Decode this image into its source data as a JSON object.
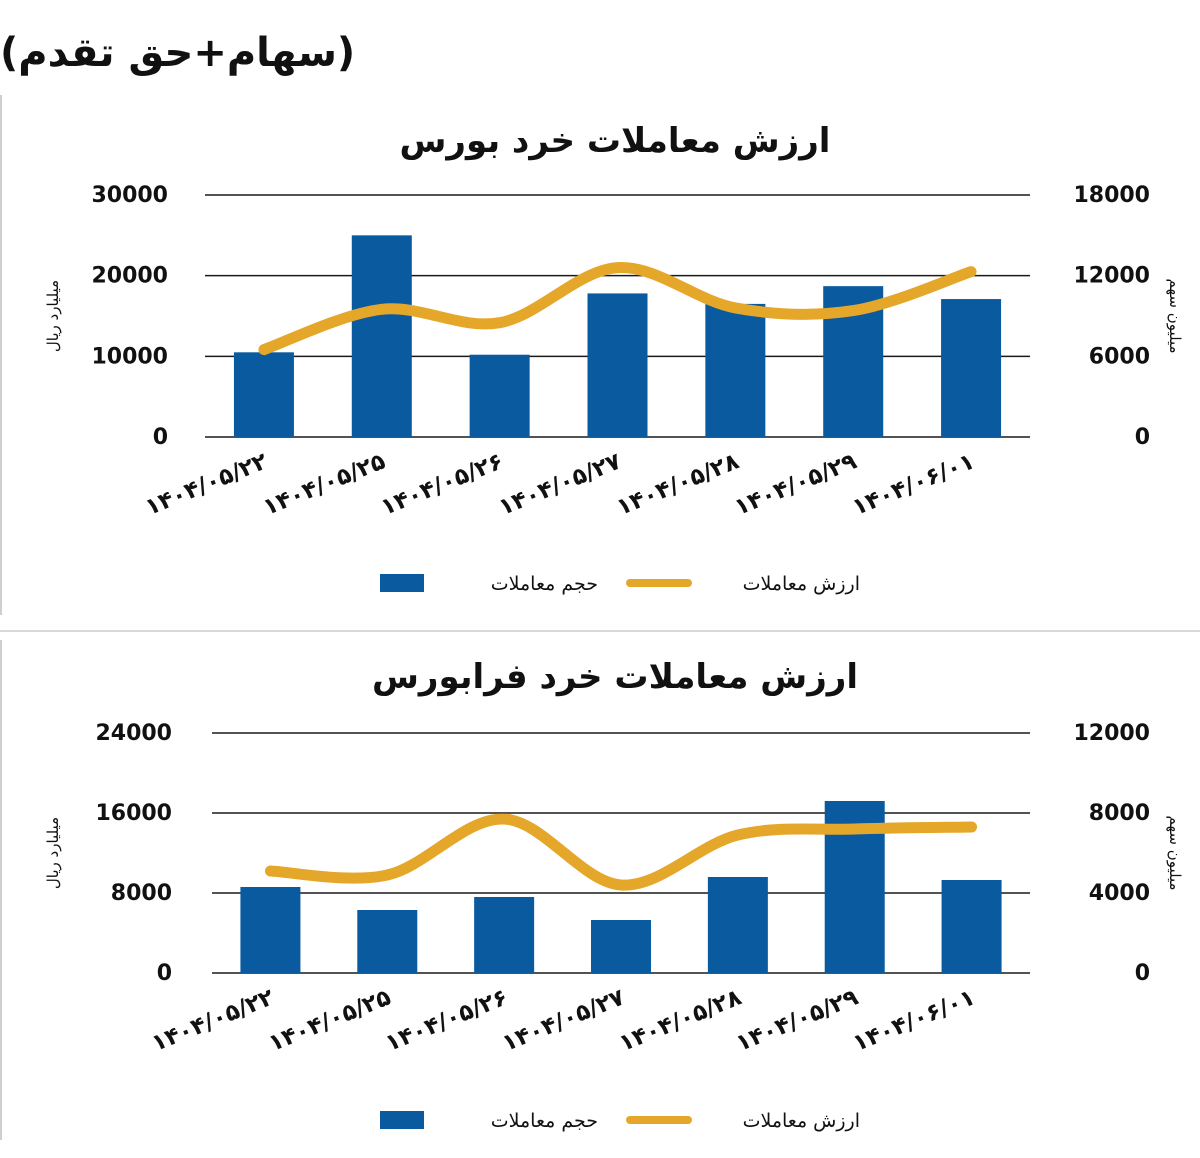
{
  "page": {
    "title": "(سهام+حق تقدم)"
  },
  "chart_data": [
    {
      "type": "bar",
      "title": "ارزش معاملات خرد بورس",
      "categories": [
        "۱۴۰۴/۰۵/۲۲",
        "۱۴۰۴/۰۵/۲۵",
        "۱۴۰۴/۰۵/۲۶",
        "۱۴۰۴/۰۵/۲۷",
        "۱۴۰۴/۰۵/۲۸",
        "۱۴۰۴/۰۵/۲۹",
        "۱۴۰۴/۰۶/۰۱"
      ],
      "left_axis": {
        "label": "میلیارد ریال",
        "ylim": [
          0,
          30000
        ],
        "ticks": [
          "0",
          "10000",
          "20000",
          "30000"
        ]
      },
      "right_axis": {
        "label": "میلیون سهم",
        "ylim": [
          0,
          18000
        ],
        "ticks": [
          "0",
          "6000",
          "12000",
          "18000"
        ]
      },
      "series": [
        {
          "name": "حجم معاملات",
          "type": "bar",
          "axis": "left",
          "color": "#0a5aa0",
          "values": [
            10500,
            25000,
            10200,
            17800,
            16500,
            18700,
            17100
          ]
        },
        {
          "name": "ارزش معاملات",
          "type": "line",
          "axis": "right",
          "color": "#e5a72a",
          "values": [
            6500,
            9500,
            8500,
            12600,
            9600,
            9400,
            12300
          ]
        }
      ],
      "grid": true,
      "legend": "bottom"
    },
    {
      "type": "bar",
      "title": "ارزش معاملات خرد فرابورس",
      "categories": [
        "۱۴۰۴/۰۵/۲۲",
        "۱۴۰۴/۰۵/۲۵",
        "۱۴۰۴/۰۵/۲۶",
        "۱۴۰۴/۰۵/۲۷",
        "۱۴۰۴/۰۵/۲۸",
        "۱۴۰۴/۰۵/۲۹",
        "۱۴۰۴/۰۶/۰۱"
      ],
      "left_axis": {
        "label": "میلیارد ریال",
        "ylim": [
          0,
          24000
        ],
        "ticks": [
          "0",
          "8000",
          "16000",
          "24000"
        ]
      },
      "right_axis": {
        "label": "میلیون سهم",
        "ylim": [
          0,
          12000
        ],
        "ticks": [
          "0",
          "4000",
          "8000",
          "12000"
        ]
      },
      "series": [
        {
          "name": "حجم معاملات",
          "type": "bar",
          "axis": "left",
          "color": "#0a5aa0",
          "values": [
            8600,
            6300,
            7600,
            5300,
            9600,
            17200,
            9300
          ]
        },
        {
          "name": "ارزش معاملات",
          "type": "line",
          "axis": "right",
          "color": "#e5a72a",
          "values": [
            5100,
            4900,
            7700,
            4400,
            6900,
            7200,
            7300
          ]
        }
      ],
      "grid": true,
      "legend": "bottom"
    }
  ]
}
